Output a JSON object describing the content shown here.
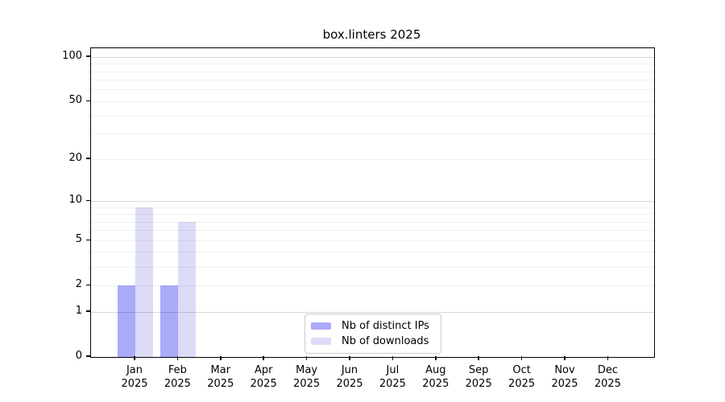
{
  "chart_data": {
    "type": "bar",
    "title": "box.linters 2025",
    "categories": [
      {
        "month": "Jan",
        "year": "2025"
      },
      {
        "month": "Feb",
        "year": "2025"
      },
      {
        "month": "Mar",
        "year": "2025"
      },
      {
        "month": "Apr",
        "year": "2025"
      },
      {
        "month": "May",
        "year": "2025"
      },
      {
        "month": "Jun",
        "year": "2025"
      },
      {
        "month": "Jul",
        "year": "2025"
      },
      {
        "month": "Aug",
        "year": "2025"
      },
      {
        "month": "Sep",
        "year": "2025"
      },
      {
        "month": "Oct",
        "year": "2025"
      },
      {
        "month": "Nov",
        "year": "2025"
      },
      {
        "month": "Dec",
        "year": "2025"
      }
    ],
    "series": [
      {
        "name": "Nb of distinct IPs",
        "color": "#aaaaf8",
        "values": [
          2,
          2,
          0,
          0,
          0,
          0,
          0,
          0,
          0,
          0,
          0,
          0
        ]
      },
      {
        "name": "Nb of downloads",
        "color": "#dcdcf8",
        "values": [
          9,
          7,
          0,
          0,
          0,
          0,
          0,
          0,
          0,
          0,
          0,
          0
        ]
      }
    ],
    "xlabel": "",
    "ylabel": "",
    "yscale": "log1p",
    "ylim": [
      0,
      115
    ],
    "yticks": [
      0,
      1,
      2,
      5,
      10,
      20,
      50,
      100
    ],
    "grid": {
      "major_lines": [
        1,
        10,
        100
      ],
      "minor_lines": [
        2,
        3,
        4,
        5,
        6,
        7,
        8,
        9,
        20,
        30,
        40,
        50,
        60,
        70,
        80,
        90
      ]
    },
    "legend_position": "lower center",
    "colors": {
      "axis": "#000000",
      "grid_major": "#d6d6d6",
      "grid_minor": "#f0f0f0",
      "legend_border": "#cccccc",
      "background": "#ffffff"
    }
  }
}
